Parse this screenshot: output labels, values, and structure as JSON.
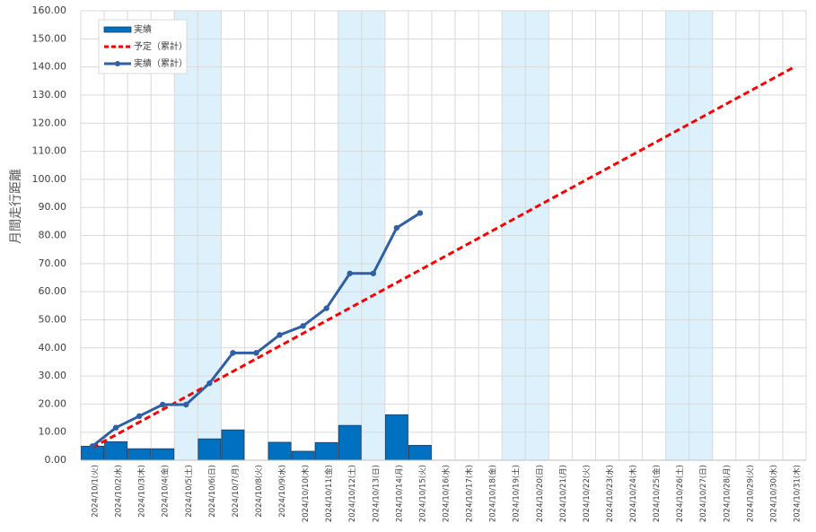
{
  "chart_data": {
    "type": "combo",
    "y_axis_label": "月間走行距離",
    "categories": [
      "2024/10/1(火)",
      "2024/10/2(水)",
      "2024/10/3(木)",
      "2024/10/4(金)",
      "2024/10/5(土)",
      "2024/10/6(日)",
      "2024/10/7(月)",
      "2024/10/8(火)",
      "2024/10/9(水)",
      "2024/10/10(木)",
      "2024/10/11(金)",
      "2024/10/12(土)",
      "2024/10/13(日)",
      "2024/10/14(月)",
      "2024/10/15(火)",
      "2024/10/16(水)",
      "2024/10/17(木)",
      "2024/10/18(金)",
      "2024/10/19(土)",
      "2024/10/20(日)",
      "2024/10/21(月)",
      "2024/10/22(火)",
      "2024/10/23(水)",
      "2024/10/24(木)",
      "2024/10/25(金)",
      "2024/10/26(土)",
      "2024/10/27(日)",
      "2024/10/28(月)",
      "2024/10/29(火)",
      "2024/10/30(水)",
      "2024/10/31(木)"
    ],
    "highlight_categories": [
      4,
      5,
      11,
      12,
      18,
      19,
      25,
      26
    ],
    "highlight_color": "#ddf1fc",
    "series": [
      {
        "name": "実績",
        "type": "bar",
        "color": "#0070c0",
        "values": [
          5.0,
          6.6,
          4.1,
          4.1,
          0,
          7.6,
          10.8,
          0,
          6.4,
          3.2,
          6.3,
          12.4,
          0,
          16.2,
          5.3,
          null,
          null,
          null,
          null,
          null,
          null,
          null,
          null,
          null,
          null,
          null,
          null,
          null,
          null,
          null,
          null
        ]
      },
      {
        "name": "予定（累計）",
        "type": "line",
        "color": "#ff0000",
        "dashed": true,
        "values": [
          4.52,
          9.03,
          13.55,
          18.06,
          22.58,
          27.1,
          31.61,
          36.13,
          40.65,
          45.16,
          49.68,
          54.19,
          58.71,
          63.23,
          67.74,
          72.26,
          76.77,
          81.29,
          85.81,
          90.32,
          94.84,
          99.35,
          103.87,
          108.39,
          112.9,
          117.42,
          121.94,
          126.45,
          130.97,
          135.48,
          140.0
        ]
      },
      {
        "name": "実績（累計）",
        "type": "line",
        "color": "#2f5fa5",
        "markers": true,
        "values": [
          5.0,
          11.6,
          15.7,
          19.8,
          19.8,
          27.4,
          38.2,
          38.2,
          44.6,
          47.8,
          54.1,
          66.5,
          66.5,
          82.7,
          88.0,
          null,
          null,
          null,
          null,
          null,
          null,
          null,
          null,
          null,
          null,
          null,
          null,
          null,
          null,
          null,
          null
        ]
      }
    ],
    "ylim": [
      0,
      160
    ],
    "yticks": [
      {
        "value": 0,
        "label": "0.00"
      },
      {
        "value": 10,
        "label": "10.00"
      },
      {
        "value": 20,
        "label": "20.00"
      },
      {
        "value": 30,
        "label": "30.00"
      },
      {
        "value": 40,
        "label": "40.00"
      },
      {
        "value": 50,
        "label": "50.00"
      },
      {
        "value": 60,
        "label": "60.00"
      },
      {
        "value": 70,
        "label": "70.00"
      },
      {
        "value": 80,
        "label": "80.00"
      },
      {
        "value": 90,
        "label": "90.00"
      },
      {
        "value": 100,
        "label": "100.00"
      },
      {
        "value": 110,
        "label": "110.00"
      },
      {
        "value": 120,
        "label": "120.00"
      },
      {
        "value": 130,
        "label": "130.00"
      },
      {
        "value": 140,
        "label": "140.00"
      },
      {
        "value": 150,
        "label": "150.00"
      },
      {
        "value": 160,
        "label": "160.00"
      }
    ],
    "grid": true,
    "legend": "top-left"
  }
}
